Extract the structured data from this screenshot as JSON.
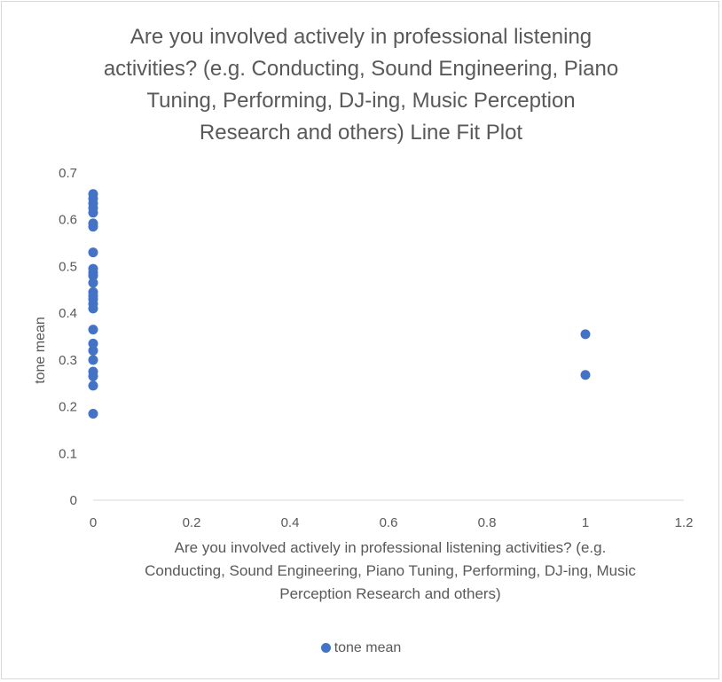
{
  "chart_data": {
    "type": "scatter",
    "title": "Are you involved actively in professional  listening activities? (e.g. Conducting, Sound Engineering, Piano Tuning, Performing, DJ-ing, Music Perception Research and others) Line Fit  Plot",
    "title_lines": [
      "Are you involved actively in professional  listening",
      "activities? (e.g. Conducting, Sound Engineering, Piano",
      "Tuning, Performing, DJ-ing, Music Perception",
      "Research and others) Line Fit  Plot"
    ],
    "xlabel": "Are you involved actively in professional listening activities? (e.g. Conducting, Sound Engineering, Piano Tuning, Performing, DJ-ing, Music Perception Research and others)",
    "xlabel_lines": [
      "Are you involved actively in professional listening activities? (e.g.",
      "Conducting, Sound Engineering, Piano Tuning, Performing, DJ-ing, Music",
      "Perception Research and others)"
    ],
    "ylabel": "tone mean",
    "xlim": [
      0,
      1.2
    ],
    "ylim": [
      0,
      0.7
    ],
    "x_ticks": [
      "0",
      "0.2",
      "0.4",
      "0.6",
      "0.8",
      "1",
      "1.2"
    ],
    "y_ticks": [
      "0",
      "0.1",
      "0.2",
      "0.3",
      "0.4",
      "0.5",
      "0.6",
      "0.7"
    ],
    "grid": false,
    "legend_position": "bottom",
    "series": [
      {
        "name": "tone mean",
        "color": "#4472c4",
        "points": [
          {
            "x": 0,
            "y": 0.655
          },
          {
            "x": 0,
            "y": 0.645
          },
          {
            "x": 0,
            "y": 0.635
          },
          {
            "x": 0,
            "y": 0.625
          },
          {
            "x": 0,
            "y": 0.615
          },
          {
            "x": 0,
            "y": 0.592
          },
          {
            "x": 0,
            "y": 0.585
          },
          {
            "x": 0,
            "y": 0.53
          },
          {
            "x": 0,
            "y": 0.495
          },
          {
            "x": 0,
            "y": 0.487
          },
          {
            "x": 0,
            "y": 0.48
          },
          {
            "x": 0,
            "y": 0.465
          },
          {
            "x": 0,
            "y": 0.445
          },
          {
            "x": 0,
            "y": 0.437
          },
          {
            "x": 0,
            "y": 0.43
          },
          {
            "x": 0,
            "y": 0.42
          },
          {
            "x": 0,
            "y": 0.41
          },
          {
            "x": 0,
            "y": 0.365
          },
          {
            "x": 0,
            "y": 0.335
          },
          {
            "x": 0,
            "y": 0.32
          },
          {
            "x": 0,
            "y": 0.3
          },
          {
            "x": 0,
            "y": 0.275
          },
          {
            "x": 0,
            "y": 0.265
          },
          {
            "x": 0,
            "y": 0.245
          },
          {
            "x": 0,
            "y": 0.185
          },
          {
            "x": 1,
            "y": 0.355
          },
          {
            "x": 1,
            "y": 0.268
          }
        ]
      }
    ]
  }
}
